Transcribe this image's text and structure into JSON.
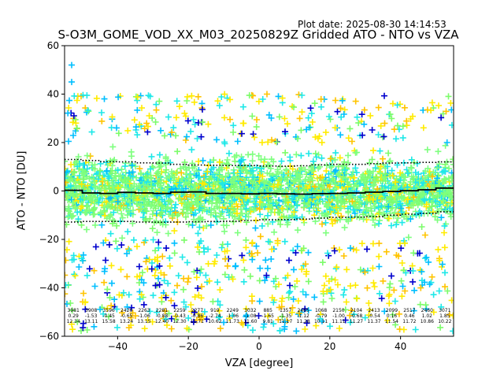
{
  "plot_date": "Plot date: 2025-08-30 14:14:53",
  "chart_data": {
    "type": "scatter",
    "title": "S-O3M_GOME_VOD_XX_M03_20250829Z Gridded ATO - NTO vs VZA",
    "xlabel": "VZA [degree]",
    "ylabel": "ATO - NTO [DU]",
    "xlim": [
      -55,
      55
    ],
    "ylim": [
      -60,
      60
    ],
    "xticks": [
      -40,
      -20,
      0,
      20,
      40
    ],
    "yticks": [
      -60,
      -40,
      -20,
      0,
      20,
      40,
      60
    ],
    "marker": "+",
    "marker_colors": [
      "#0000cd",
      "#00bfff",
      "#1ee8e8",
      "#7cfc6a",
      "#ffeb00",
      "#ffc400",
      "#7fff7f"
    ],
    "mean_line": {
      "x": [
        -55,
        -50,
        -45,
        -40,
        -35,
        -30,
        -25,
        -20,
        -15,
        -10,
        -5,
        0,
        5,
        10,
        15,
        20,
        25,
        30,
        35,
        40,
        45,
        50,
        55
      ],
      "y": [
        0.3,
        -0.8,
        -1.0,
        -0.6,
        -0.8,
        -1.0,
        -0.5,
        -0.4,
        -1.0,
        -1.0,
        -1.2,
        -1.0,
        -1.2,
        -1.3,
        -1.1,
        -1.0,
        -0.8,
        -0.5,
        -0.2,
        0.1,
        0.5,
        1.2,
        1.6
      ]
    },
    "upper_sigma_line": {
      "x": [
        -55,
        -50,
        -45,
        -40,
        -35,
        -30,
        -25,
        -20,
        -15,
        -10,
        -5,
        0,
        5,
        10,
        15,
        20,
        25,
        30,
        35,
        40,
        45,
        50,
        55
      ],
      "y": [
        13.0,
        12.6,
        12.1,
        12.0,
        11.6,
        11.5,
        11.0,
        10.7,
        10.6,
        10.5,
        10.5,
        10.3,
        10.2,
        10.4,
        10.8,
        11.0,
        11.0,
        11.3,
        11.5,
        11.6,
        11.8,
        12.0,
        12.2
      ]
    },
    "lower_sigma_line": {
      "x": [
        -55,
        -50,
        -45,
        -40,
        -35,
        -30,
        -25,
        -20,
        -15,
        -10,
        -5,
        0,
        5,
        10,
        15,
        20,
        25,
        30,
        35,
        40,
        45,
        50,
        55
      ],
      "y": [
        -12.8,
        -12.6,
        -12.6,
        -12.6,
        -12.8,
        -12.9,
        -12.8,
        -12.7,
        -12.6,
        -12.5,
        -12.2,
        -11.9,
        -11.8,
        -11.6,
        -11.2,
        -10.9,
        -10.8,
        -10.6,
        -10.0,
        -9.6,
        -9.2,
        -8.6,
        -8.0
      ]
    },
    "scatter_band": {
      "core_low": -22,
      "core_high": 28,
      "tail_low": -58,
      "tail_high": 40
    },
    "outlier_points": [
      {
        "x": -53,
        "y": 52,
        "color": "#00bfff"
      },
      {
        "x": -53,
        "y": 45,
        "color": "#00bfff"
      }
    ],
    "bin_stats": [
      {
        "x": -52.5,
        "count": "3981",
        "mean": "0.29",
        "std": "12.34"
      },
      {
        "x": -47.5,
        "count": "3908",
        "mean": "-1.53",
        "std": "13.11"
      },
      {
        "x": -42.5,
        "count": "3596",
        "mean": "-0.45",
        "std": "15.58"
      },
      {
        "x": -37.5,
        "count": "2426",
        "mean": "-0.65",
        "std": "13.24"
      },
      {
        "x": -32.5,
        "count": "2263",
        "mean": "-1.06",
        "std": "13.15"
      },
      {
        "x": -27.5,
        "count": "2281",
        "mean": "-0.88",
        "std": "12.40"
      },
      {
        "x": -22.5,
        "count": "2259",
        "mean": "-0.43",
        "std": "12.30"
      },
      {
        "x": -17.5,
        "count": "2277",
        "mean": "-0.86",
        "std": "11.71"
      },
      {
        "x": -12.5,
        "count": "919",
        "mean": "-2.74",
        "std": "10.62"
      },
      {
        "x": -7.5,
        "count": "2249",
        "mean": "-1.06",
        "std": "11.73"
      },
      {
        "x": -2.5,
        "count": "3032",
        "mean": "-1.08",
        "std": "11.60"
      },
      {
        "x": 2.5,
        "count": "885",
        "mean": "-1.65",
        "std": "9.81"
      },
      {
        "x": 7.5,
        "count": "1357",
        "mean": "-1.35",
        "std": "11.17"
      },
      {
        "x": 12.5,
        "count": "2465",
        "mean": "-1.12",
        "std": "11.28"
      },
      {
        "x": 17.5,
        "count": "1068",
        "mean": "-0.79",
        "std": "10.11"
      },
      {
        "x": 22.5,
        "count": "2150",
        "mean": "-1.00",
        "std": "11.11"
      },
      {
        "x": 27.5,
        "count": "2104",
        "mean": "-0.68",
        "std": "11.27"
      },
      {
        "x": 32.5,
        "count": "2413",
        "mean": "-0.54",
        "std": "11.37"
      },
      {
        "x": 37.5,
        "count": "2099",
        "mean": "0.16",
        "std": "11.54"
      },
      {
        "x": 42.5,
        "count": "2517",
        "mean": "0.46",
        "std": "11.72"
      },
      {
        "x": 47.5,
        "count": "2460",
        "mean": "1.02",
        "std": "10.86"
      },
      {
        "x": 52.5,
        "count": "3071",
        "mean": "1.85",
        "std": "10.22"
      }
    ]
  }
}
